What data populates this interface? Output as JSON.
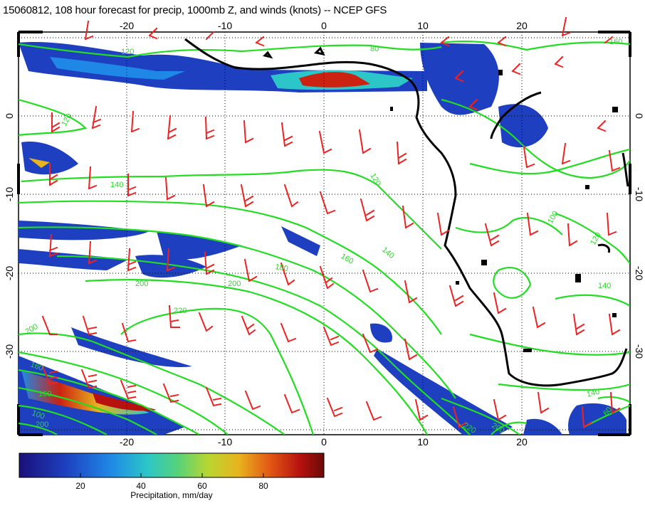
{
  "title": "15060812, 108 hour forecast for precip, 1000mb Z, and winds (knots) -- NCEP GFS",
  "map": {
    "lon_ticks": [
      "-20",
      "-10",
      "0",
      "10",
      "20"
    ],
    "lat_ticks": [
      "0",
      "-10",
      "-20",
      "-30"
    ],
    "lon_range": [
      -30,
      30
    ],
    "lat_range": [
      -40,
      9
    ],
    "contour_labels": [
      "120",
      "120",
      "140",
      "120",
      "140",
      "160",
      "180",
      "200",
      "220",
      "200",
      "200",
      "100",
      "200",
      "160",
      "100",
      "120",
      "140",
      "140",
      "220",
      "200",
      "60",
      "100",
      "80",
      "160"
    ],
    "colors": {
      "contour": "#22dd22",
      "barb": "#ee2222",
      "coast": "#000000",
      "precip_low": "#2233aa",
      "precip_high": "#cc2211"
    }
  },
  "colorbar": {
    "ticks": [
      "20",
      "40",
      "60",
      "80"
    ],
    "label": "Precipitation, mm/day",
    "range": [
      0,
      100
    ]
  }
}
